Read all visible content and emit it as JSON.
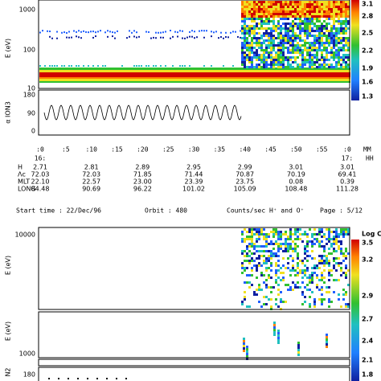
{
  "top": {
    "spectrum": {
      "ylabel": "E (eV)",
      "yticks": [
        "1000",
        "100",
        "10"
      ],
      "colorbar": [
        "3.1",
        "2.8",
        "2.5",
        "2.2",
        "1.9",
        "1.6",
        "1.3"
      ]
    },
    "pitch": {
      "ylabel": "α ION3",
      "yticks": [
        "180",
        "90",
        "0"
      ]
    }
  },
  "time_axis": {
    "minutes": [
      ":0",
      ":5",
      ":10",
      ":15",
      ":20",
      ":25",
      ":30",
      ":35",
      ":40",
      ":45",
      ":50",
      ":55",
      ":0"
    ],
    "minutes_unit": "MM",
    "hours": [
      "16:",
      "17:"
    ],
    "hours_unit": "HH"
  },
  "table": {
    "rows": [
      {
        "label": "H",
        "values": [
          "2.71",
          "2.81",
          "2.89",
          "2.95",
          "2.99",
          "3.01",
          "3.01"
        ]
      },
      {
        "label": "Λc",
        "values": [
          "72.03",
          "72.03",
          "71.85",
          "71.44",
          "70.87",
          "70.19",
          "69.41"
        ]
      },
      {
        "label": "MLT",
        "values": [
          "22.10",
          "22.57",
          "23.00",
          "23.39",
          "23.75",
          "0.08",
          "0.39"
        ]
      },
      {
        "label": "LONG",
        "values": [
          "84.48",
          "90.69",
          "96.22",
          "101.02",
          "105.09",
          "108.48",
          "111.28"
        ]
      }
    ]
  },
  "header": {
    "start_time": "Start time : 22/Dec/96",
    "orbit": "Orbit :  480",
    "counts": "Counts/sec H⁺ and O⁺",
    "page": "Page : 5/12"
  },
  "bottom": {
    "spectrum_upper": {
      "ylabel": "E (eV)",
      "yticks": [
        "10000"
      ],
      "colorbar_title": "Log C",
      "colorbar": [
        "3.5",
        "3.2",
        "2.9"
      ]
    },
    "spectrum_lower": {
      "ylabel": "E (eV)",
      "yticks": [
        "1000"
      ],
      "colorbar": [
        "2.7",
        "2.4",
        "2.1",
        "1.8"
      ]
    },
    "pitch": {
      "ylabel": "N2",
      "yticks": [
        "180"
      ]
    }
  }
}
